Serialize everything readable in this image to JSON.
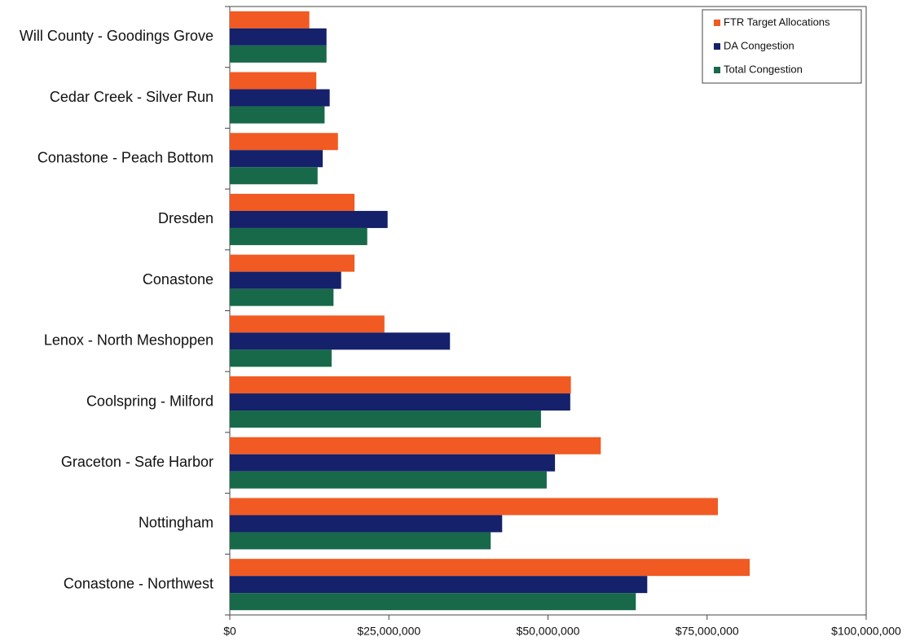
{
  "chart_data": {
    "type": "hbar",
    "categories": [
      "Will County - Goodings Grove",
      "Cedar Creek - Silver Run",
      "Conastone - Peach Bottom",
      "Dresden",
      "Conastone",
      "Lenox - North Meshoppen",
      "Coolspring - Milford",
      "Graceton - Safe Harbor",
      "Nottingham",
      "Conastone - Northwest"
    ],
    "series": [
      {
        "name": "FTR Target Allocations",
        "color": "#f15a22",
        "values": [
          12500000,
          13600000,
          17000000,
          19600000,
          19600000,
          24300000,
          53600000,
          58300000,
          76700000,
          81700000
        ]
      },
      {
        "name": "DA Congestion",
        "color": "#15216b",
        "values": [
          15200000,
          15700000,
          14600000,
          24800000,
          17500000,
          34600000,
          53500000,
          51100000,
          42800000,
          65600000
        ]
      },
      {
        "name": "Total Congestion",
        "color": "#17694a",
        "values": [
          15200000,
          14900000,
          13800000,
          21600000,
          16300000,
          16000000,
          48900000,
          49800000,
          41000000,
          63800000
        ]
      }
    ],
    "xlim": [
      0,
      100000000
    ],
    "xticks": [
      {
        "value": 0,
        "label": "$0"
      },
      {
        "value": 25000000,
        "label": "$25,000,000"
      },
      {
        "value": 50000000,
        "label": "$50,000,000"
      },
      {
        "value": 75000000,
        "label": "$75,000,000"
      },
      {
        "value": 100000000,
        "label": "$100,000,000"
      }
    ],
    "legend": "top-right"
  }
}
